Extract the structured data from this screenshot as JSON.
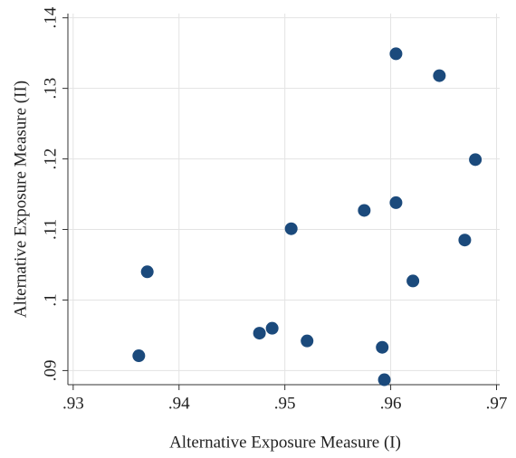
{
  "chart_data": {
    "type": "scatter",
    "x_label": "Alternative Exposure Measure (I)",
    "y_label": "Alternative Exposure Measure (II)",
    "x": [
      0.9605,
      0.9646,
      0.968,
      0.9605,
      0.9575,
      0.9506,
      0.967,
      0.937,
      0.9621,
      0.9488,
      0.9476,
      0.9521,
      0.9592,
      0.9362,
      0.9594
    ],
    "values": [
      0.1349,
      0.1318,
      0.1199,
      0.1138,
      0.1127,
      0.1101,
      0.1085,
      0.104,
      0.1027,
      0.096,
      0.0953,
      0.0942,
      0.0933,
      0.0921,
      0.0887
    ],
    "color": "#1b4a7c",
    "xlim": [
      0.9295,
      0.9703
    ],
    "ylim": [
      0.088,
      0.1406
    ],
    "xticks": [
      {
        "value": 0.93,
        "label": ".93"
      },
      {
        "value": 0.94,
        "label": ".94"
      },
      {
        "value": 0.95,
        "label": ".95"
      },
      {
        "value": 0.96,
        "label": ".96"
      },
      {
        "value": 0.97,
        "label": ".97"
      }
    ],
    "yticks": [
      {
        "value": 0.09,
        "label": ".09"
      },
      {
        "value": 0.1,
        "label": ".1"
      },
      {
        "value": 0.11,
        "label": ".11"
      },
      {
        "value": 0.12,
        "label": ".12"
      },
      {
        "value": 0.13,
        "label": ".13"
      },
      {
        "value": 0.14,
        "label": ".14"
      }
    ],
    "grid": true
  }
}
